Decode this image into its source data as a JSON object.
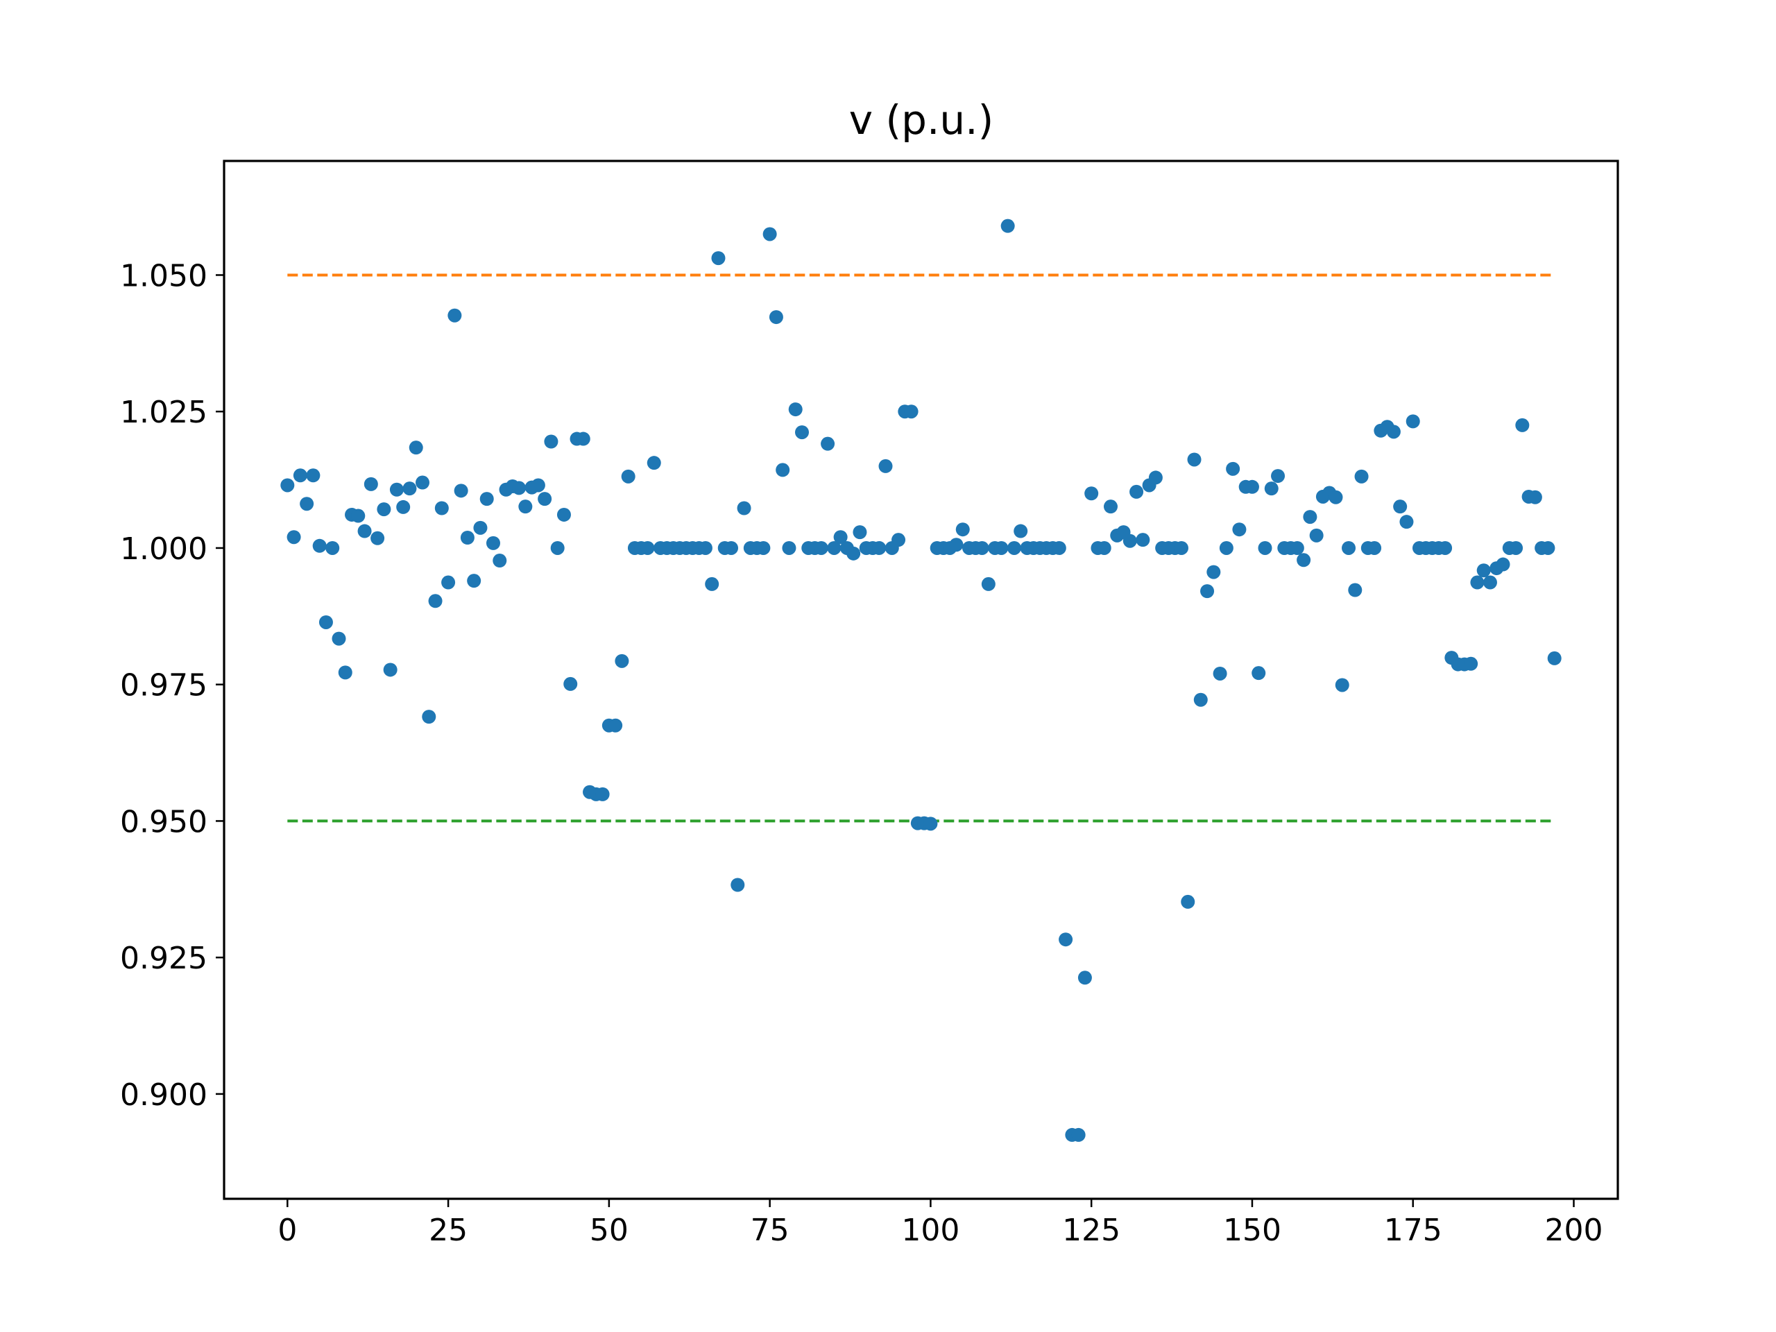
{
  "chart_data": {
    "type": "scatter",
    "title": "v (p.u.)",
    "xlabel": "",
    "ylabel": "",
    "xlim": [
      -9.85,
      206.85
    ],
    "ylim": [
      0.8808,
      1.0709
    ],
    "xticks": [
      0,
      25,
      50,
      75,
      100,
      125,
      150,
      175,
      200
    ],
    "yticks": [
      0.9,
      0.925,
      0.95,
      0.975,
      1.0,
      1.025,
      1.05
    ],
    "xtick_labels": [
      "0",
      "25",
      "50",
      "75",
      "100",
      "125",
      "150",
      "175",
      "200"
    ],
    "ytick_labels": [
      "0.900",
      "0.925",
      "0.950",
      "0.975",
      "1.000",
      "1.025",
      "1.050"
    ],
    "grid": false,
    "legend": "none",
    "series": [
      {
        "color": "#1f77b4",
        "marker": "dot",
        "x": [
          0,
          1,
          2,
          3,
          4,
          5,
          6,
          7,
          8,
          9,
          10,
          11,
          12,
          13,
          14,
          15,
          16,
          17,
          18,
          19,
          20,
          21,
          22,
          23,
          24,
          25,
          26,
          27,
          28,
          29,
          30,
          31,
          32,
          33,
          34,
          35,
          36,
          37,
          38,
          39,
          40,
          41,
          42,
          43,
          44,
          45,
          46,
          47,
          48,
          49,
          50,
          51,
          52,
          53,
          54,
          55,
          56,
          57,
          58,
          59,
          60,
          61,
          62,
          63,
          64,
          65,
          66,
          67,
          68,
          69,
          70,
          71,
          72,
          73,
          74,
          75,
          76,
          77,
          78,
          79,
          80,
          81,
          82,
          83,
          84,
          85,
          86,
          87,
          88,
          89,
          90,
          91,
          92,
          93,
          94,
          95,
          96,
          97,
          98,
          99,
          100,
          101,
          102,
          103,
          104,
          105,
          106,
          107,
          108,
          109,
          110,
          111,
          112,
          113,
          114,
          115,
          116,
          117,
          118,
          119,
          120,
          121,
          122,
          123,
          124,
          125,
          126,
          127,
          128,
          129,
          130,
          131,
          132,
          133,
          134,
          135,
          136,
          137,
          138,
          139,
          140,
          141,
          142,
          143,
          144,
          145,
          146,
          147,
          148,
          149,
          150,
          151,
          152,
          153,
          154,
          155,
          156,
          157,
          158,
          159,
          160,
          161,
          162,
          163,
          164,
          165,
          166,
          167,
          168,
          169,
          170,
          171,
          172,
          173,
          174,
          175,
          176,
          177,
          178,
          179,
          180,
          181,
          182,
          183,
          184,
          185,
          186,
          187,
          188,
          189,
          190,
          191,
          192,
          193,
          194,
          195,
          196,
          197
        ],
        "y": [
          1.0115,
          1.002,
          1.0133,
          1.0081,
          1.0133,
          1.0004,
          0.9864,
          1.0,
          0.9834,
          0.9772,
          1.0061,
          1.0059,
          1.0031,
          1.0117,
          1.0018,
          1.0071,
          0.9777,
          1.0107,
          1.0075,
          1.0109,
          1.0184,
          1.012,
          0.9691,
          0.9903,
          1.0073,
          0.9937,
          1.0426,
          1.0105,
          1.0019,
          0.994,
          1.0037,
          1.009,
          1.0009,
          0.9977,
          1.0107,
          1.0113,
          1.011,
          1.0076,
          1.0111,
          1.0115,
          1.009,
          1.0195,
          1.0,
          1.0061,
          0.9751,
          1.02,
          1.02,
          0.9553,
          0.9549,
          0.9549,
          0.9675,
          0.9675,
          0.9793,
          1.0131,
          1.0,
          1.0,
          1.0,
          1.0156,
          1.0,
          1.0,
          1.0,
          1.0,
          1.0,
          1.0,
          1.0,
          1.0,
          0.9934,
          1.0531,
          1.0,
          1.0,
          0.9383,
          1.0073,
          1.0,
          1.0,
          1.0,
          1.0575,
          1.0423,
          1.0143,
          1.0,
          1.0254,
          1.0212,
          1.0,
          1.0,
          1.0,
          1.0191,
          1.0,
          1.002,
          1.0,
          0.999,
          1.0029,
          1.0,
          1.0,
          1.0,
          1.015,
          1.0,
          1.0015,
          1.025,
          1.025,
          0.9496,
          0.9496,
          0.9495,
          1.0,
          1.0,
          1.0,
          1.0006,
          1.0034,
          1.0,
          1.0,
          1.0,
          0.9934,
          1.0,
          1.0,
          1.059,
          1.0,
          1.0031,
          1.0,
          1.0,
          1.0,
          1.0,
          1.0,
          1.0,
          0.9283,
          0.8925,
          0.8925,
          0.9213,
          1.01,
          1.0,
          1.0,
          1.0076,
          1.0023,
          1.0029,
          1.0013,
          1.0103,
          1.0015,
          1.0115,
          1.0129,
          1.0,
          1.0,
          1.0,
          1.0,
          0.9352,
          1.0162,
          0.9722,
          0.9921,
          0.9956,
          0.977,
          1.0,
          1.0145,
          1.0034,
          1.0112,
          1.0112,
          0.9771,
          1.0,
          1.0109,
          1.0132,
          1.0,
          1.0,
          1.0,
          0.9978,
          1.0057,
          1.0023,
          1.0094,
          1.0101,
          1.0093,
          0.9749,
          1.0,
          0.9923,
          1.0131,
          1.0,
          1.0,
          1.0215,
          1.0222,
          1.0213,
          1.0076,
          1.0048,
          1.0232,
          1.0,
          1.0,
          1.0,
          1.0,
          1.0,
          0.9799,
          0.9787,
          0.9787,
          0.9788,
          0.9937,
          0.9959,
          0.9937,
          0.9963,
          0.997,
          1.0,
          1.0,
          1.0225,
          1.0094,
          1.0093,
          1.0,
          1.0,
          0.9798
        ]
      },
      {
        "color": "#ff7f0e",
        "style": "dashed",
        "x": [
          0,
          197
        ],
        "y": [
          1.05,
          1.05
        ]
      },
      {
        "color": "#2ca02c",
        "style": "dashed",
        "x": [
          0,
          197
        ],
        "y": [
          0.95,
          0.95
        ]
      }
    ]
  }
}
